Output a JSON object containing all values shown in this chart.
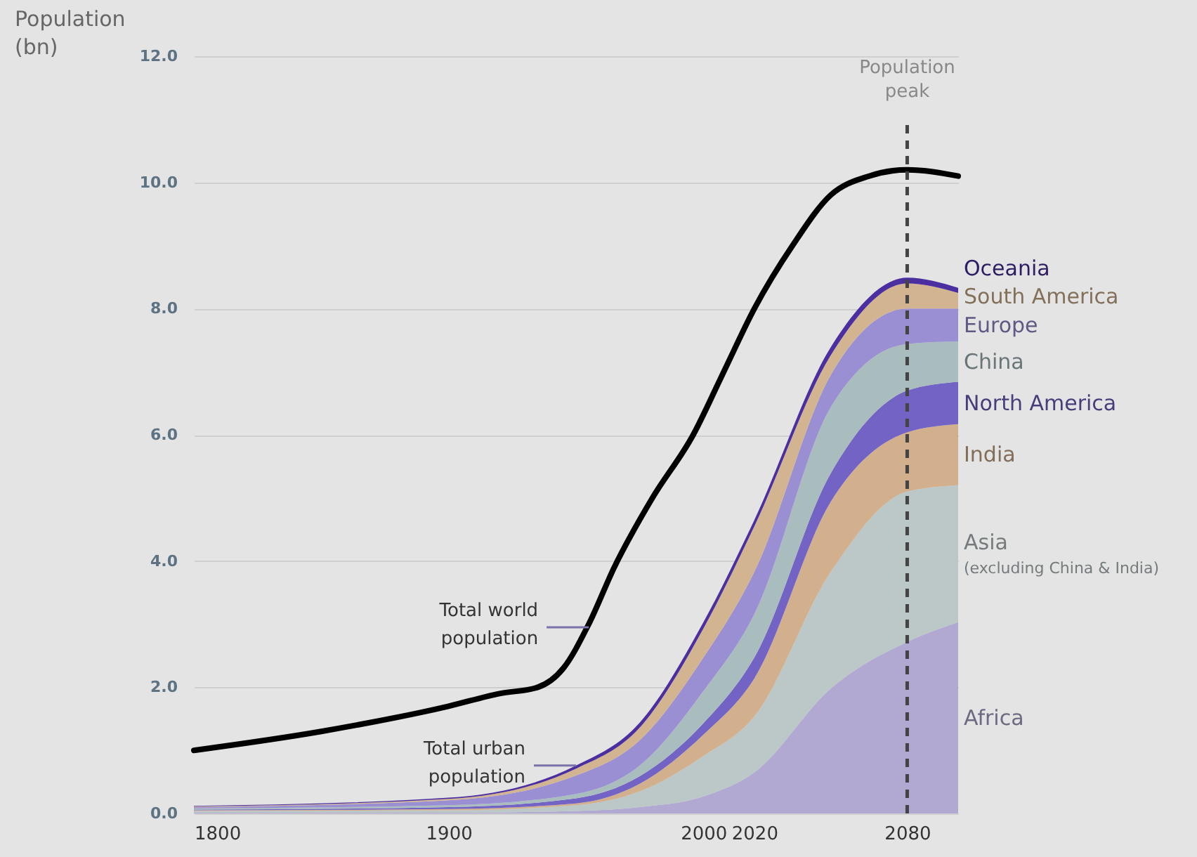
{
  "chart_data": {
    "type": "area",
    "stacked": true,
    "ylabel": "Population\n(bn)",
    "x": [
      1800,
      1900,
      1950,
      1975,
      2000,
      2020,
      2050,
      2080,
      2100
    ],
    "xlim": [
      1800,
      2100
    ],
    "xticks": [
      1800,
      1900,
      2000,
      2020,
      2080
    ],
    "ylim": [
      0,
      12
    ],
    "yticks": [
      {
        "value": 0,
        "label": "0.0"
      },
      {
        "value": 2,
        "label": "2.0"
      },
      {
        "value": 4,
        "label": "4.0"
      },
      {
        "value": 6,
        "label": "6.0"
      },
      {
        "value": 8,
        "label": "8.0"
      },
      {
        "value": 10,
        "label": "10.0"
      },
      {
        "value": 12,
        "label": "12.0"
      }
    ],
    "grid": "y",
    "series": [
      {
        "name": "Africa",
        "color": "#b2a9d2",
        "values": [
          0.01,
          0.01,
          0.04,
          0.1,
          0.27,
          0.65,
          1.98,
          2.72,
          3.03
        ]
      },
      {
        "name": "Asia\n(excluding China & India)",
        "color": "#bcc7c8",
        "values": [
          0.03,
          0.04,
          0.09,
          0.25,
          0.64,
          0.89,
          1.85,
          2.38,
          2.17
        ]
      },
      {
        "name": "India",
        "color": "#d2b08e",
        "values": [
          0.01,
          0.02,
          0.03,
          0.12,
          0.34,
          0.6,
          1.11,
          0.94,
          0.97
        ]
      },
      {
        "name": "North America",
        "color": "#7263c4",
        "values": [
          0.01,
          0.03,
          0.08,
          0.12,
          0.18,
          0.33,
          0.45,
          0.66,
          0.67
        ]
      },
      {
        "name": "China",
        "color": "#a9bcbe",
        "values": [
          0.02,
          0.03,
          0.07,
          0.17,
          0.51,
          0.69,
          1.05,
          0.74,
          0.64
        ]
      },
      {
        "name": "Europe",
        "color": "#9b8fd4",
        "values": [
          0.02,
          0.08,
          0.29,
          0.4,
          0.53,
          0.67,
          0.51,
          0.56,
          0.52
        ]
      },
      {
        "name": "South America",
        "color": "#d3b490",
        "values": [
          0.01,
          0.02,
          0.11,
          0.2,
          0.46,
          0.72,
          0.31,
          0.4,
          0.25
        ]
      },
      {
        "name": "Oceania",
        "color": "#4b2fa0",
        "values": [
          0.01,
          0.02,
          0.05,
          0.08,
          0.1,
          0.1,
          0.13,
          0.09,
          0.08
        ]
      },
      {
        "type": "line",
        "color": "#000000",
        "x": [
          1800,
          1850,
          1900,
          1920,
          1935,
          1945,
          1955,
          1965,
          1980,
          1996,
          2008,
          2020,
          2035,
          2050,
          2065,
          2080,
          2100
        ],
        "values": [
          1.0,
          1.3,
          1.7,
          1.9,
          2.0,
          2.3,
          3.0,
          3.9,
          5.0,
          6.0,
          7.0,
          8.0,
          9.0,
          9.8,
          10.1,
          10.2,
          10.1
        ]
      }
    ],
    "ref_lines": [
      {
        "axis": "x",
        "value": 2080,
        "label": "Population\npeak",
        "line_style": "dashed",
        "color": "#444444"
      }
    ],
    "annotations": [
      {
        "text": "Total world\npopulation",
        "x": 1955,
        "y": 2.95
      },
      {
        "text": "Total urban\npopulation",
        "x": 1950,
        "y": 0.76
      }
    ]
  }
}
